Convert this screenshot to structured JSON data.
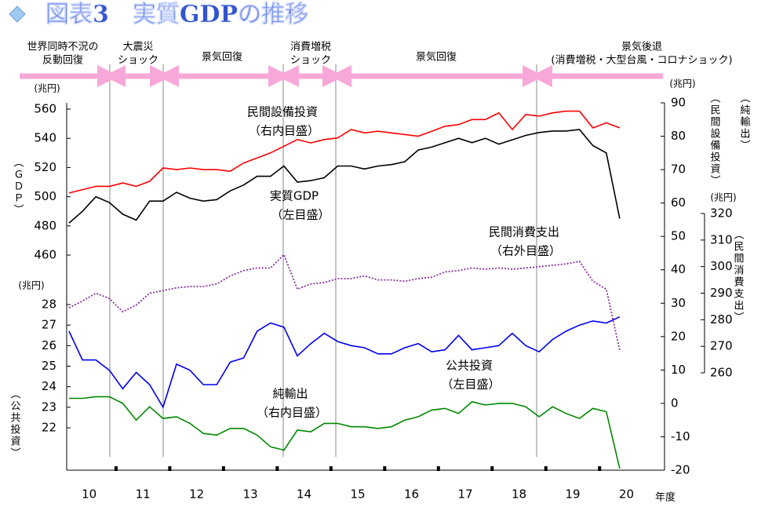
{
  "chart_data": {
    "type": "line",
    "title": "図表3　実質GDPの推移",
    "year_labels": [
      "10",
      "11",
      "12",
      "13",
      "14",
      "15",
      "16",
      "17",
      "18",
      "19",
      "20"
    ],
    "x_unit": "年度",
    "phases": [
      {
        "lines": [
          "世界同時不況の",
          "反動回復"
        ]
      },
      {
        "lines": [
          "大震災",
          "ショック"
        ]
      },
      {
        "lines": [
          "景気回復"
        ]
      },
      {
        "lines": [
          "消費増税",
          "ショック"
        ]
      },
      {
        "lines": [
          "景気回復"
        ]
      },
      {
        "lines": [
          "景気後退",
          "(消費増税・大型台風・コロナショック)"
        ]
      }
    ],
    "axes": {
      "gdp": {
        "unit": "(兆円)",
        "label": "（ＧＤＰ）",
        "lim": [
          460,
          560
        ],
        "ticks": [
          460,
          480,
          500,
          520,
          540,
          560
        ]
      },
      "public": {
        "unit": "(兆円)",
        "label": "（公共投資）",
        "lim": [
          22,
          28
        ],
        "ticks": [
          22,
          23,
          24,
          25,
          26,
          27,
          28
        ]
      },
      "inner": {
        "unit": "(兆円)",
        "labels": [
          "（民間設備投資）",
          "（純輸出）"
        ],
        "lim": [
          -20,
          90
        ],
        "ticks": [
          -20,
          -10,
          0,
          10,
          20,
          30,
          40,
          50,
          60,
          70,
          80,
          90
        ]
      },
      "outer": {
        "unit": "(兆円)",
        "label": "（民間消費支出）",
        "lim": [
          260,
          320
        ],
        "ticks": [
          260,
          270,
          280,
          290,
          300,
          310,
          320
        ]
      }
    },
    "series": [
      {
        "name": "実質GDP",
        "note": "（左目盛）",
        "axis": "gdp",
        "color": "#000000",
        "values": [
          482,
          490,
          500,
          496,
          488,
          484,
          497,
          497,
          503,
          499,
          497,
          498,
          504,
          508,
          514,
          514,
          521,
          510,
          511,
          513,
          521,
          521,
          519,
          521,
          522,
          524,
          532,
          534,
          537,
          540,
          537,
          540,
          536,
          539,
          542,
          544,
          545,
          545,
          546,
          535,
          530,
          485
        ]
      },
      {
        "name": "民間設備投資",
        "note": "（右内目盛）",
        "axis": "inner",
        "color": "#ff0000",
        "values": [
          63,
          64,
          65,
          65,
          66,
          65,
          66.5,
          70.5,
          70,
          70.5,
          70,
          70,
          69.5,
          72,
          73.5,
          75,
          77,
          79,
          78,
          79,
          79.5,
          82,
          81,
          81.5,
          81,
          80.5,
          80,
          81.5,
          83,
          83.5,
          85,
          85,
          87,
          82,
          86.5,
          86,
          87,
          87.5,
          87.5,
          82.5,
          84,
          82.5
        ]
      },
      {
        "name": "民間消費支出",
        "note": "（右外目盛）",
        "axis": "outer",
        "color": "#8b2fa0",
        "dashed": true,
        "values": [
          284.5,
          287,
          290,
          288,
          283,
          285.5,
          290,
          291,
          292,
          292.5,
          292.5,
          293.5,
          296.5,
          298.5,
          299.5,
          299.5,
          304.5,
          291.5,
          293.5,
          294,
          295.5,
          295.5,
          296.5,
          295,
          295,
          294.5,
          295.5,
          296,
          298,
          298.5,
          299.5,
          299,
          299.5,
          299,
          299.5,
          300,
          300.5,
          301,
          302,
          294.5,
          291.5,
          268.5
        ]
      },
      {
        "name": "公共投資",
        "note": "（左目盛）",
        "axis": "public",
        "color": "#0000ee",
        "values": [
          26.7,
          25.3,
          25.3,
          24.8,
          23.9,
          24.7,
          24.1,
          23.0,
          25.1,
          24.8,
          24.1,
          24.1,
          25.2,
          25.4,
          26.7,
          27.1,
          26.9,
          25.5,
          26.1,
          26.6,
          26.2,
          26.0,
          25.9,
          25.6,
          25.6,
          25.9,
          26.1,
          25.7,
          25.8,
          26.5,
          25.8,
          25.9,
          26.0,
          26.6,
          26.0,
          25.7,
          26.3,
          26.7,
          27.0,
          27.2,
          27.1,
          27.4
        ]
      },
      {
        "name": "純輸出",
        "note": "（右内目盛）",
        "axis": "inner",
        "color": "#008800",
        "values": [
          1.5,
          1.5,
          2,
          2,
          0,
          -5,
          -1,
          -4.5,
          -4,
          -6,
          -9,
          -9.5,
          -7.5,
          -7.5,
          -9.5,
          -13,
          -14,
          -8,
          -8.5,
          -6,
          -6,
          -7,
          -7,
          -7.5,
          -7,
          -5,
          -4,
          -2,
          -1.5,
          -3,
          0.5,
          -0.5,
          0,
          0,
          -1,
          -4,
          -1,
          -3,
          -4.5,
          -1.5,
          -2.5,
          -19.5
        ]
      }
    ]
  }
}
